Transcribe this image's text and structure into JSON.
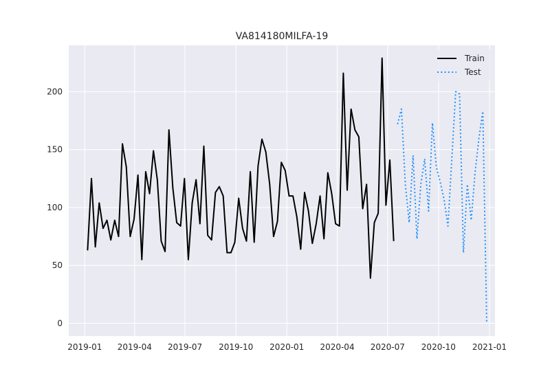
{
  "chart_data": {
    "type": "line",
    "title": "VA814180MILFA-19",
    "xlabel": "",
    "ylabel": "",
    "x_range": [
      "2018-12-03",
      "2021-01-11"
    ],
    "ylim": [
      -11,
      240
    ],
    "x_ticks": [
      {
        "date": "2019-01-01",
        "label": "2019-01"
      },
      {
        "date": "2019-04-01",
        "label": "2019-04"
      },
      {
        "date": "2019-07-01",
        "label": "2019-07"
      },
      {
        "date": "2019-10-01",
        "label": "2019-10"
      },
      {
        "date": "2020-01-01",
        "label": "2020-01"
      },
      {
        "date": "2020-04-01",
        "label": "2020-04"
      },
      {
        "date": "2020-07-01",
        "label": "2020-07"
      },
      {
        "date": "2020-10-01",
        "label": "2020-10"
      },
      {
        "date": "2021-01-01",
        "label": "2021-01"
      }
    ],
    "y_ticks": [
      0,
      50,
      100,
      150,
      200
    ],
    "grid": true,
    "legend": "top-right",
    "series": [
      {
        "name": "Train",
        "color": "#000000",
        "style": "solid",
        "points": [
          [
            "2019-01-06",
            63
          ],
          [
            "2019-01-13",
            125
          ],
          [
            "2019-01-20",
            66
          ],
          [
            "2019-01-27",
            104
          ],
          [
            "2019-02-03",
            82
          ],
          [
            "2019-02-10",
            89
          ],
          [
            "2019-02-17",
            72
          ],
          [
            "2019-02-24",
            89
          ],
          [
            "2019-03-03",
            75
          ],
          [
            "2019-03-10",
            155
          ],
          [
            "2019-03-17",
            135
          ],
          [
            "2019-03-24",
            75
          ],
          [
            "2019-03-31",
            90
          ],
          [
            "2019-04-07",
            128
          ],
          [
            "2019-04-14",
            55
          ],
          [
            "2019-04-21",
            131
          ],
          [
            "2019-04-28",
            112
          ],
          [
            "2019-05-05",
            149
          ],
          [
            "2019-05-12",
            124
          ],
          [
            "2019-05-19",
            71
          ],
          [
            "2019-05-26",
            62
          ],
          [
            "2019-06-02",
            167
          ],
          [
            "2019-06-09",
            117
          ],
          [
            "2019-06-16",
            87
          ],
          [
            "2019-06-23",
            84
          ],
          [
            "2019-06-30",
            125
          ],
          [
            "2019-07-07",
            55
          ],
          [
            "2019-07-14",
            104
          ],
          [
            "2019-07-21",
            124
          ],
          [
            "2019-07-28",
            86
          ],
          [
            "2019-08-04",
            153
          ],
          [
            "2019-08-11",
            76
          ],
          [
            "2019-08-18",
            72
          ],
          [
            "2019-08-25",
            113
          ],
          [
            "2019-09-01",
            118
          ],
          [
            "2019-09-08",
            110
          ],
          [
            "2019-09-15",
            61
          ],
          [
            "2019-09-22",
            61
          ],
          [
            "2019-09-29",
            70
          ],
          [
            "2019-10-06",
            108
          ],
          [
            "2019-10-13",
            82
          ],
          [
            "2019-10-20",
            71
          ],
          [
            "2019-10-27",
            131
          ],
          [
            "2019-11-03",
            70
          ],
          [
            "2019-11-10",
            136
          ],
          [
            "2019-11-17",
            159
          ],
          [
            "2019-11-24",
            148
          ],
          [
            "2019-12-01",
            120
          ],
          [
            "2019-12-08",
            75
          ],
          [
            "2019-12-15",
            88
          ],
          [
            "2019-12-22",
            139
          ],
          [
            "2019-12-29",
            132
          ],
          [
            "2020-01-05",
            110
          ],
          [
            "2020-01-12",
            110
          ],
          [
            "2020-01-19",
            92
          ],
          [
            "2020-01-26",
            64
          ],
          [
            "2020-02-02",
            113
          ],
          [
            "2020-02-09",
            97
          ],
          [
            "2020-02-16",
            69
          ],
          [
            "2020-02-23",
            86
          ],
          [
            "2020-03-01",
            110
          ],
          [
            "2020-03-08",
            73
          ],
          [
            "2020-03-15",
            130
          ],
          [
            "2020-03-22",
            112
          ],
          [
            "2020-03-29",
            86
          ],
          [
            "2020-04-05",
            84
          ],
          [
            "2020-04-12",
            216
          ],
          [
            "2020-04-19",
            115
          ],
          [
            "2020-04-26",
            185
          ],
          [
            "2020-05-03",
            167
          ],
          [
            "2020-05-10",
            161
          ],
          [
            "2020-05-17",
            99
          ],
          [
            "2020-05-24",
            120
          ],
          [
            "2020-05-31",
            39
          ],
          [
            "2020-06-07",
            87
          ],
          [
            "2020-06-14",
            95
          ],
          [
            "2020-06-21",
            229
          ],
          [
            "2020-06-28",
            102
          ],
          [
            "2020-07-05",
            141
          ],
          [
            "2020-07-12",
            71
          ]
        ]
      },
      {
        "name": "Test",
        "color": "#1e90ff",
        "style": "dotted",
        "points": [
          [
            "2020-07-19",
            172
          ],
          [
            "2020-07-26",
            185
          ],
          [
            "2020-08-02",
            120
          ],
          [
            "2020-08-09",
            87
          ],
          [
            "2020-08-16",
            145
          ],
          [
            "2020-08-23",
            73
          ],
          [
            "2020-08-30",
            120
          ],
          [
            "2020-09-06",
            142
          ],
          [
            "2020-09-13",
            97
          ],
          [
            "2020-09-20",
            173
          ],
          [
            "2020-09-27",
            135
          ],
          [
            "2020-10-04",
            122
          ],
          [
            "2020-10-11",
            107
          ],
          [
            "2020-10-18",
            84
          ],
          [
            "2020-10-25",
            142
          ],
          [
            "2020-11-01",
            200
          ],
          [
            "2020-11-08",
            198
          ],
          [
            "2020-11-15",
            61
          ],
          [
            "2020-11-22",
            120
          ],
          [
            "2020-11-29",
            89
          ],
          [
            "2020-12-06",
            130
          ],
          [
            "2020-12-13",
            160
          ],
          [
            "2020-12-20",
            183
          ],
          [
            "2020-12-27",
            1
          ]
        ]
      }
    ]
  }
}
